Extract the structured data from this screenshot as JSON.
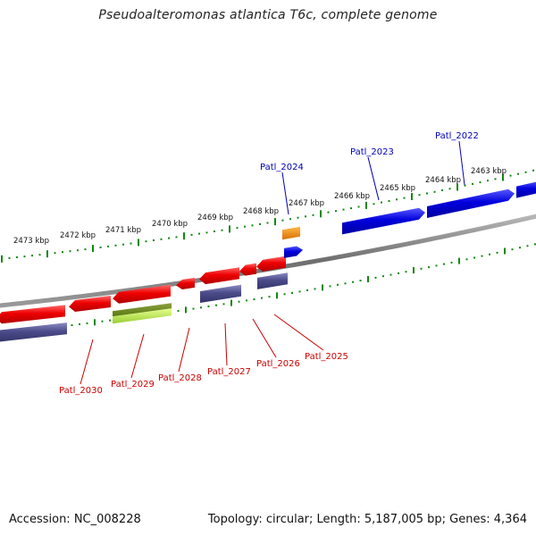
{
  "title": "Pseudoalteromonas atlantica T6c, complete genome",
  "footer": {
    "accession": "Accession: NC_008228",
    "summary": "Topology: circular; Length: 5,187,005 bp; Genes: 4,364"
  },
  "colors": {
    "backbone": "#7a7a7a",
    "tick": "#118811",
    "forward_cds": "#0000dd",
    "reverse_cds": "#ee0000",
    "reverse_gene": "#4b4b8a",
    "rna": "#9acd32",
    "label_forward": "#0000bb",
    "label_reverse": "#cc0000",
    "orange_feature": "#ee8800"
  },
  "scale_labels": [
    "2473 kbp",
    "2472 kbp",
    "2471 kbp",
    "2470 kbp",
    "2469 kbp",
    "2468 kbp",
    "2467 kbp",
    "2466 kbp",
    "2465 kbp",
    "2464 kbp",
    "2463 kbp"
  ],
  "gene_labels_top": [
    "Patl_2024",
    "Patl_2023",
    "Patl_2022"
  ],
  "gene_labels_bottom": [
    "Patl_2030",
    "Patl_2029",
    "Patl_2028",
    "Patl_2027",
    "Patl_2026",
    "Patl_2025"
  ]
}
